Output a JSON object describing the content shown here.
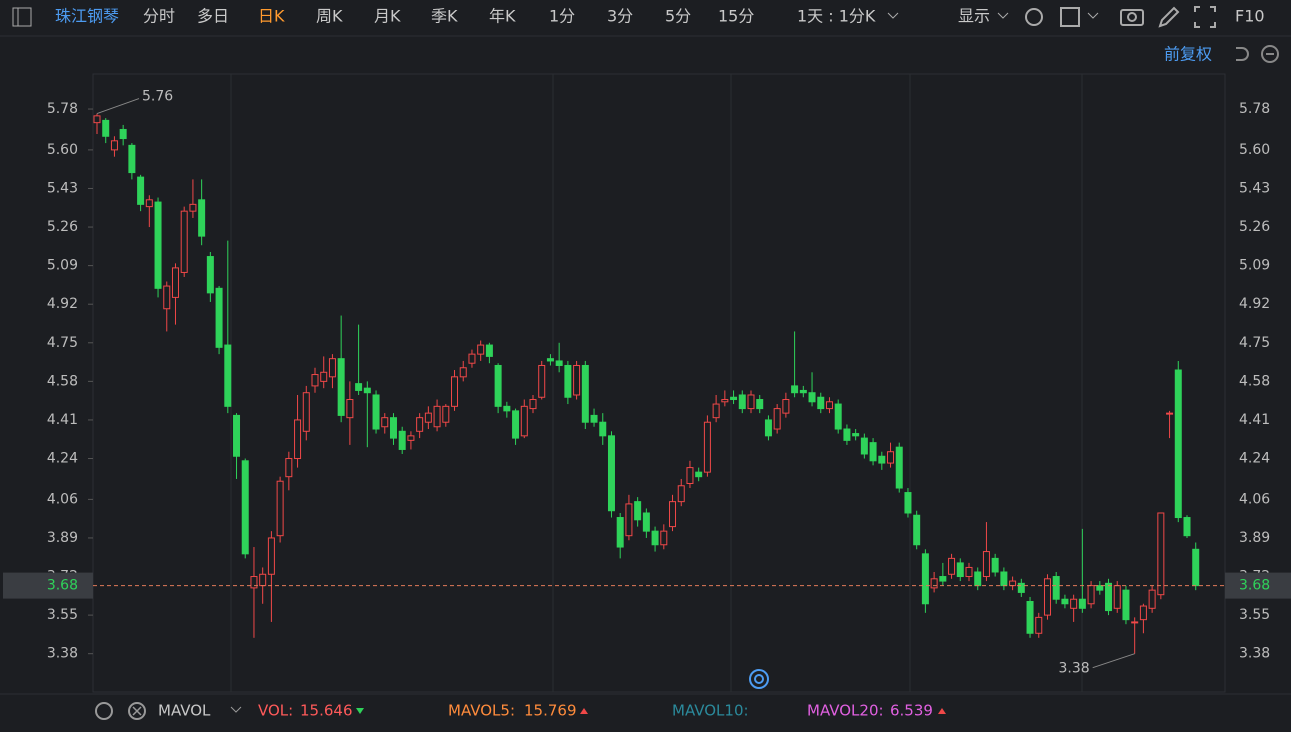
{
  "toolbar": {
    "stock": "珠江钢琴",
    "tabs": [
      "分时",
      "多日",
      "日K",
      "周K",
      "月K",
      "季K",
      "年K",
      "1分",
      "3分",
      "5分",
      "15分"
    ],
    "active": "日K",
    "range": "1天 : 1分K",
    "display": "显示",
    "f10": "F10",
    "adjust": "前复权"
  },
  "chart_data": {
    "type": "candlestick",
    "up_color": "#f04848",
    "down_color": "#2fd35a",
    "ylim": [
      3.22,
      5.93
    ],
    "yticks": [
      5.78,
      {
        "value": 5.6,
        "label": "5.60"
      },
      5.43,
      5.26,
      5.09,
      4.92,
      4.75,
      4.58,
      4.41,
      4.24,
      4.06,
      3.89,
      3.72,
      3.55,
      3.38
    ],
    "last": 3.68,
    "max_label": 5.76,
    "min_label": 3.38,
    "ohlc": [
      [
        5.72,
        5.76,
        5.67,
        5.75
      ],
      [
        5.73,
        5.74,
        5.63,
        5.66
      ],
      [
        5.6,
        5.66,
        5.57,
        5.64
      ],
      [
        5.69,
        5.71,
        5.62,
        5.65
      ],
      [
        5.62,
        5.63,
        5.47,
        5.5
      ],
      [
        5.48,
        5.49,
        5.33,
        5.36
      ],
      [
        5.35,
        5.4,
        5.26,
        5.38
      ],
      [
        5.37,
        5.39,
        4.95,
        4.99
      ],
      [
        4.9,
        5.02,
        4.8,
        5.0
      ],
      [
        4.95,
        5.1,
        4.83,
        5.08
      ],
      [
        5.06,
        5.35,
        5.04,
        5.33
      ],
      [
        5.33,
        5.47,
        5.3,
        5.36
      ],
      [
        5.38,
        5.47,
        5.18,
        5.22
      ],
      [
        5.13,
        5.15,
        4.93,
        4.97
      ],
      [
        4.99,
        5.0,
        4.7,
        4.73
      ],
      [
        4.74,
        5.2,
        4.44,
        4.47
      ],
      [
        4.43,
        4.44,
        4.15,
        4.25
      ],
      [
        4.23,
        4.24,
        3.8,
        3.82
      ],
      [
        3.67,
        3.85,
        3.45,
        3.72
      ],
      [
        3.68,
        3.76,
        3.6,
        3.73
      ],
      [
        3.73,
        3.92,
        3.52,
        3.89
      ],
      [
        3.9,
        4.16,
        3.87,
        4.14
      ],
      [
        4.16,
        4.27,
        4.1,
        4.24
      ],
      [
        4.24,
        4.52,
        4.2,
        4.41
      ],
      [
        4.36,
        4.56,
        4.32,
        4.53
      ],
      [
        4.56,
        4.64,
        4.53,
        4.61
      ],
      [
        4.58,
        4.69,
        4.55,
        4.62
      ],
      [
        4.6,
        4.7,
        4.55,
        4.68
      ],
      [
        4.68,
        4.87,
        4.4,
        4.43
      ],
      [
        4.42,
        4.58,
        4.3,
        4.5
      ],
      [
        4.57,
        4.83,
        4.52,
        4.54
      ],
      [
        4.55,
        4.58,
        4.29,
        4.53
      ],
      [
        4.52,
        4.54,
        4.35,
        4.37
      ],
      [
        4.38,
        4.44,
        4.35,
        4.42
      ],
      [
        4.42,
        4.44,
        4.3,
        4.33
      ],
      [
        4.36,
        4.38,
        4.26,
        4.28
      ],
      [
        4.32,
        4.36,
        4.28,
        4.34
      ],
      [
        4.36,
        4.44,
        4.33,
        4.42
      ],
      [
        4.4,
        4.47,
        4.37,
        4.44
      ],
      [
        4.38,
        4.5,
        4.36,
        4.47
      ],
      [
        4.4,
        4.48,
        4.38,
        4.47
      ],
      [
        4.47,
        4.63,
        4.45,
        4.6
      ],
      [
        4.6,
        4.67,
        4.58,
        4.64
      ],
      [
        4.66,
        4.72,
        4.64,
        4.7
      ],
      [
        4.7,
        4.76,
        4.67,
        4.74
      ],
      [
        4.74,
        4.75,
        4.66,
        4.69
      ],
      [
        4.65,
        4.66,
        4.44,
        4.47
      ],
      [
        4.47,
        4.49,
        4.42,
        4.45
      ],
      [
        4.45,
        4.46,
        4.3,
        4.33
      ],
      [
        4.34,
        4.5,
        4.33,
        4.47
      ],
      [
        4.46,
        4.52,
        4.44,
        4.5
      ],
      [
        4.51,
        4.67,
        4.5,
        4.65
      ],
      [
        4.68,
        4.7,
        4.65,
        4.67
      ],
      [
        4.67,
        4.75,
        4.62,
        4.65
      ],
      [
        4.65,
        4.67,
        4.48,
        4.51
      ],
      [
        4.52,
        4.67,
        4.5,
        4.65
      ],
      [
        4.65,
        4.67,
        4.37,
        4.4
      ],
      [
        4.43,
        4.46,
        4.38,
        4.4
      ],
      [
        4.4,
        4.44,
        4.3,
        4.34
      ],
      [
        4.34,
        4.36,
        3.98,
        4.01
      ],
      [
        3.98,
        4.0,
        3.8,
        3.85
      ],
      [
        3.9,
        4.08,
        3.88,
        4.04
      ],
      [
        4.05,
        4.07,
        3.94,
        3.97
      ],
      [
        4.0,
        4.02,
        3.89,
        3.92
      ],
      [
        3.92,
        3.94,
        3.83,
        3.86
      ],
      [
        3.86,
        3.95,
        3.84,
        3.92
      ],
      [
        3.94,
        4.08,
        3.92,
        4.05
      ],
      [
        4.05,
        4.15,
        4.03,
        4.12
      ],
      [
        4.13,
        4.23,
        4.11,
        4.2
      ],
      [
        4.18,
        4.2,
        4.14,
        4.16
      ],
      [
        4.18,
        4.43,
        4.16,
        4.4
      ],
      [
        4.42,
        4.52,
        4.4,
        4.48
      ],
      [
        4.49,
        4.54,
        4.47,
        4.5
      ],
      [
        4.51,
        4.54,
        4.48,
        4.5
      ],
      [
        4.52,
        4.54,
        4.44,
        4.46
      ],
      [
        4.46,
        4.54,
        4.44,
        4.52
      ],
      [
        4.5,
        4.52,
        4.44,
        4.46
      ],
      [
        4.41,
        4.43,
        4.32,
        4.34
      ],
      [
        4.37,
        4.48,
        4.35,
        4.46
      ],
      [
        4.44,
        4.53,
        4.42,
        4.5
      ],
      [
        4.56,
        4.8,
        4.51,
        4.53
      ],
      [
        4.54,
        4.56,
        4.51,
        4.53
      ],
      [
        4.53,
        4.62,
        4.47,
        4.49
      ],
      [
        4.51,
        4.53,
        4.44,
        4.46
      ],
      [
        4.46,
        4.51,
        4.44,
        4.49
      ],
      [
        4.48,
        4.5,
        4.35,
        4.37
      ],
      [
        4.37,
        4.39,
        4.3,
        4.32
      ],
      [
        4.35,
        4.37,
        4.32,
        4.34
      ],
      [
        4.33,
        4.35,
        4.24,
        4.26
      ],
      [
        4.31,
        4.33,
        4.21,
        4.23
      ],
      [
        4.25,
        4.27,
        4.19,
        4.22
      ],
      [
        4.22,
        4.31,
        4.2,
        4.27
      ],
      [
        4.29,
        4.31,
        4.09,
        4.11
      ],
      [
        4.09,
        4.11,
        3.98,
        4.0
      ],
      [
        3.99,
        4.01,
        3.84,
        3.86
      ],
      [
        3.82,
        3.84,
        3.56,
        3.6
      ],
      [
        3.67,
        3.74,
        3.65,
        3.71
      ],
      [
        3.72,
        3.78,
        3.68,
        3.7
      ],
      [
        3.73,
        3.82,
        3.71,
        3.8
      ],
      [
        3.78,
        3.8,
        3.7,
        3.72
      ],
      [
        3.72,
        3.78,
        3.7,
        3.76
      ],
      [
        3.74,
        3.76,
        3.66,
        3.68
      ],
      [
        3.72,
        3.96,
        3.7,
        3.83
      ],
      [
        3.8,
        3.82,
        3.72,
        3.74
      ],
      [
        3.74,
        3.76,
        3.66,
        3.68
      ],
      [
        3.68,
        3.72,
        3.66,
        3.7
      ],
      [
        3.69,
        3.71,
        3.63,
        3.65
      ],
      [
        3.61,
        3.63,
        3.45,
        3.47
      ],
      [
        3.47,
        3.56,
        3.45,
        3.54
      ],
      [
        3.55,
        3.73,
        3.53,
        3.71
      ],
      [
        3.72,
        3.74,
        3.6,
        3.62
      ],
      [
        3.62,
        3.64,
        3.58,
        3.6
      ],
      [
        3.58,
        3.64,
        3.52,
        3.62
      ],
      [
        3.62,
        3.93,
        3.56,
        3.58
      ],
      [
        3.6,
        3.7,
        3.58,
        3.68
      ],
      [
        3.68,
        3.7,
        3.64,
        3.66
      ],
      [
        3.69,
        3.71,
        3.55,
        3.57
      ],
      [
        3.58,
        3.7,
        3.56,
        3.68
      ],
      [
        3.66,
        3.68,
        3.51,
        3.53
      ],
      [
        3.52,
        3.54,
        3.38,
        3.52
      ],
      [
        3.53,
        3.6,
        3.47,
        3.59
      ],
      [
        3.58,
        3.68,
        3.56,
        3.66
      ],
      [
        3.64,
        4.0,
        3.62,
        4.0
      ],
      [
        4.44,
        4.45,
        4.33,
        4.44
      ],
      [
        4.63,
        4.67,
        3.96,
        3.98
      ],
      [
        3.98,
        3.99,
        3.89,
        3.9
      ],
      [
        3.84,
        3.87,
        3.66,
        3.68
      ]
    ]
  },
  "indicators": {
    "name": "MAVOL",
    "vol_label": "VOL:",
    "vol": "15.646",
    "ma5_label": "MAVOL5:",
    "ma5": "15.769",
    "ma10_label": "MAVOL10:",
    "ma20_label": "MAVOL20:",
    "ma20": "6.539"
  }
}
